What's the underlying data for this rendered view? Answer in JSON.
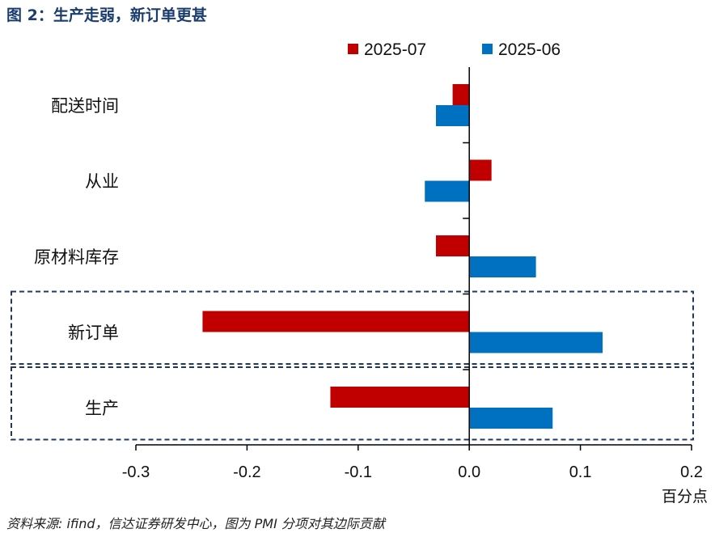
{
  "figure_title": "图 2：生产走弱，新订单更甚",
  "source_note": "资料来源: ifind，信达证券研发中心，图为 PMI 分项对其边际贡献",
  "chart_data": {
    "type": "bar",
    "orientation": "horizontal",
    "categories": [
      "配送时间",
      "从业",
      "原材料库存",
      "新订单",
      "生产"
    ],
    "series": [
      {
        "name": "2025-07",
        "color": "#c00000",
        "values": [
          -0.015,
          0.02,
          -0.03,
          -0.24,
          -0.125
        ]
      },
      {
        "name": "2025-06",
        "color": "#0070c0",
        "values": [
          -0.03,
          -0.04,
          0.06,
          0.12,
          0.075
        ]
      }
    ],
    "xlim": [
      -0.3,
      0.2
    ],
    "xticks": [
      "-0.3",
      "-0.2",
      "-0.1",
      "0.0",
      "0.1",
      "0.2"
    ],
    "xlabel": "百分点",
    "legend_position": "top",
    "highlighted_categories": [
      "新订单",
      "生产"
    ],
    "highlight_color": "#1f3864",
    "grid": false
  }
}
